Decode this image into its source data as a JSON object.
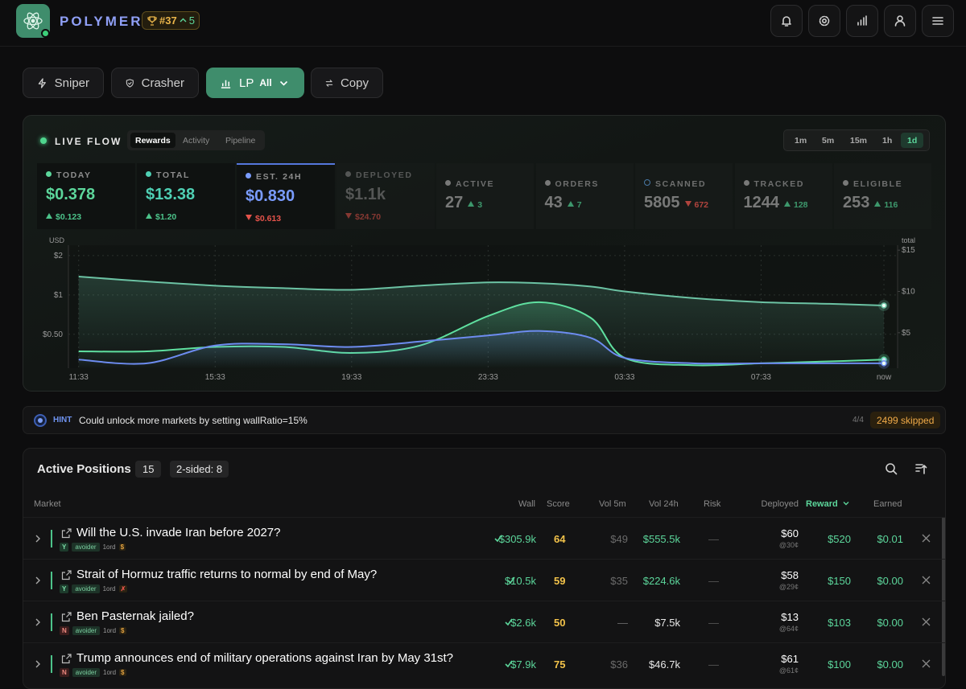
{
  "header": {
    "brand": "POLYMER",
    "rank": "#37",
    "rank_delta": "5"
  },
  "modes": [
    "Sniper",
    "Crasher",
    "LP",
    "Copy"
  ],
  "lp_filter": "All",
  "live": {
    "title": "LIVE FLOW",
    "tabs": [
      "Rewards",
      "Activity",
      "Pipeline"
    ],
    "ranges": [
      "1m",
      "5m",
      "15m",
      "1h",
      "1d"
    ]
  },
  "stats": [
    {
      "label": "TODAY",
      "value": "$0.378",
      "delta": "$0.123",
      "dir": "up",
      "color": "#5cd69b"
    },
    {
      "label": "TOTAL",
      "value": "$13.38",
      "delta": "$1.20",
      "dir": "up",
      "color": "#4fd0b4"
    },
    {
      "label": "EST. 24H",
      "value": "$0.830",
      "delta": "$0.613",
      "dir": "down",
      "color": "#7a9cff"
    },
    {
      "label": "DEPLOYED",
      "value": "$1.1k",
      "delta": "$24.70",
      "dir": "down",
      "color": "#8a8a8a"
    },
    {
      "label": "ACTIVE",
      "value": "27",
      "delta": "3",
      "dir": "up",
      "color": "#9a9a9a"
    },
    {
      "label": "ORDERS",
      "value": "43",
      "delta": "7",
      "dir": "up",
      "color": "#9a9a9a"
    },
    {
      "label": "SCANNED",
      "value": "5805",
      "delta": "672",
      "dir": "down",
      "color": "#9a9a9a"
    },
    {
      "label": "TRACKED",
      "value": "1244",
      "delta": "128",
      "dir": "up",
      "color": "#9a9a9a"
    },
    {
      "label": "ELIGIBLE",
      "value": "253",
      "delta": "116",
      "dir": "up",
      "color": "#9a9a9a"
    }
  ],
  "chart_data": {
    "type": "line",
    "y_label": "USD",
    "y2_label": "total",
    "log_scale": true,
    "grid": true,
    "x": [
      0,
      2,
      4,
      6,
      8,
      10,
      12,
      13.5,
      15,
      16,
      18,
      20,
      22,
      23.6
    ],
    "xlim": [
      -0.3,
      24
    ],
    "xticks": [
      {
        "value": 0,
        "label": "11:33"
      },
      {
        "value": 4,
        "label": "15:33"
      },
      {
        "value": 8,
        "label": "19:33"
      },
      {
        "value": 12,
        "label": "23:33"
      },
      {
        "value": 16,
        "label": "03:33"
      },
      {
        "value": 20,
        "label": "07:33"
      },
      {
        "value": 23.6,
        "label": "now"
      }
    ],
    "ylim": [
      0.275,
      2.4
    ],
    "yticks": [
      {
        "value": 2,
        "label": "$2"
      },
      {
        "value": 1,
        "label": "$1"
      },
      {
        "value": 0.5,
        "label": "$0.50"
      }
    ],
    "y2lim": [
      0.7,
      15.6
    ],
    "y2ticks": [
      {
        "value": 15,
        "label": "$15"
      },
      {
        "value": 10,
        "label": "$10"
      },
      {
        "value": 5,
        "label": "$5"
      }
    ],
    "series": [
      {
        "color": "#6cc3a4",
        "axis": "y2",
        "values": [
          11.8,
          11.2,
          10.7,
          10.4,
          10.2,
          10.7,
          11.1,
          11.0,
          10.6,
          10.0,
          9.2,
          8.7,
          8.5,
          8.3
        ]
      },
      {
        "color": "#5fe0a0",
        "values": [
          0.37,
          0.37,
          0.4,
          0.4,
          0.36,
          0.41,
          0.69,
          0.88,
          0.67,
          0.33,
          0.29,
          0.3,
          0.31,
          0.32
        ]
      },
      {
        "color": "#6d8cf0",
        "values": [
          0.32,
          0.3,
          0.41,
          0.42,
          0.4,
          0.44,
          0.49,
          0.53,
          0.47,
          0.33,
          0.3,
          0.3,
          0.3,
          0.3
        ]
      }
    ]
  },
  "hint": {
    "tag": "HINT",
    "text": "Could unlock more markets by setting wallRatio=15%",
    "page": "4/4",
    "skipped": "2499 skipped"
  },
  "positions": {
    "title": "Active Positions",
    "count": "15",
    "two_sided": "2-sided: 8",
    "columns": [
      "Market",
      "Wall",
      "Score",
      "Vol 5m",
      "Vol 24h",
      "Risk",
      "Deployed",
      "Reward",
      "Earned"
    ],
    "rows": [
      {
        "title": "Will the U.S. invade Iran before 2027?",
        "side": "Y",
        "tag": "avoider",
        "orders": "1ord",
        "flag": "$",
        "flag_color": "#e0a040",
        "wall": "$305.9k",
        "score": "64",
        "vol5m": "$49",
        "vol24h": "$555.5k",
        "vol24h_color": "#5cd69b",
        "risk": "—",
        "deployed": "$60",
        "price": "@30¢",
        "reward": "$520",
        "earned": "$0.01"
      },
      {
        "title": "Strait of Hormuz traffic returns to normal by end of May?",
        "side": "Y",
        "tag": "avoider",
        "orders": "1ord",
        "flag": "✗",
        "flag_color": "#e5534b",
        "wall": "$10.5k",
        "score": "59",
        "vol5m": "$35",
        "vol24h": "$224.6k",
        "vol24h_color": "#5cd69b",
        "risk": "—",
        "deployed": "$58",
        "price": "@29¢",
        "reward": "$150",
        "earned": "$0.00"
      },
      {
        "title": "Ben Pasternak jailed?",
        "side": "N",
        "tag": "avoider",
        "orders": "1ord",
        "flag": "$",
        "flag_color": "#e0a040",
        "wall": "$2.6k",
        "score": "50",
        "vol5m": "—",
        "vol24h": "$7.5k",
        "vol24h_color": "#e8e8e8",
        "risk": "—",
        "deployed": "$13",
        "price": "@64¢",
        "reward": "$103",
        "earned": "$0.00"
      },
      {
        "title": "Trump announces end of military operations against Iran by May 31st?",
        "side": "N",
        "tag": "avoider",
        "orders": "1ord",
        "flag": "$",
        "flag_color": "#e0a040",
        "wall": "$7.9k",
        "score": "75",
        "vol5m": "$36",
        "vol24h": "$46.7k",
        "vol24h_color": "#e8e8e8",
        "risk": "—",
        "deployed": "$61",
        "price": "@61¢",
        "reward": "$100",
        "earned": "$0.00"
      }
    ]
  }
}
